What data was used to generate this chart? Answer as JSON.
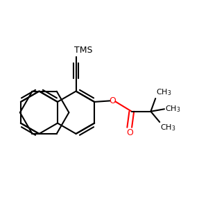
{
  "background_color": "#ffffff",
  "bond_color": "#000000",
  "oxygen_color": "#ff0000",
  "line_width": 1.5,
  "tms_label": "TMS",
  "ch3_label": "CH3",
  "font_size_tms": 9,
  "font_size_ch3": 8,
  "font_size_o": 9
}
